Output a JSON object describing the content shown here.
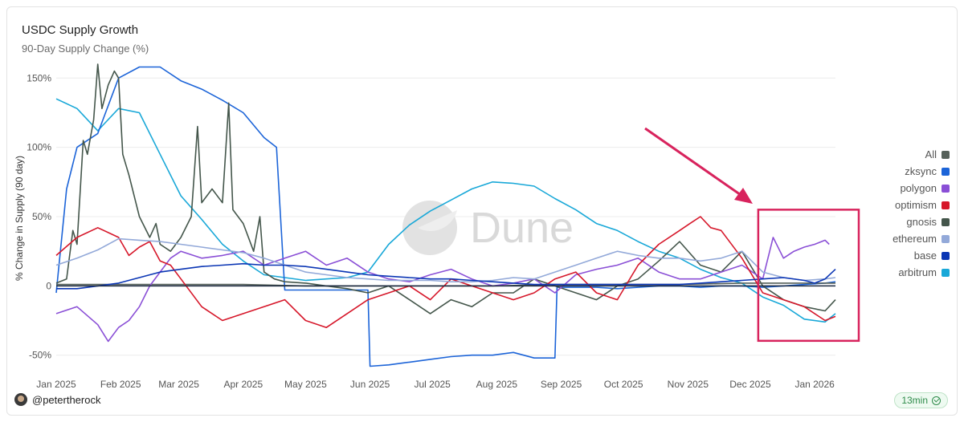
{
  "header": {
    "title": "USDC Supply Growth",
    "subtitle": "90-Day Supply Change (%)"
  },
  "footer": {
    "author": "@petertherock",
    "refresh": "13min"
  },
  "watermark": "Dune",
  "colors": {
    "All": "#56615a",
    "zksync": "#1c64d8",
    "polygon": "#8a4fd6",
    "optimism": "#d6172a",
    "gnosis": "#44564b",
    "ethereum": "#93a9d9",
    "base": "#0a35b4",
    "arbitrum": "#19a8d8",
    "highlight": "#d8235d",
    "axis": "#1c2a40"
  },
  "chart_data": {
    "type": "line",
    "title": "USDC Supply Growth",
    "subtitle": "90-Day Supply Change (%)",
    "xlabel": "",
    "ylabel": "% Change in Supply (90 day)",
    "ylim": [
      -60,
      160
    ],
    "yticks": [
      150,
      100,
      50,
      0,
      -50
    ],
    "ytick_labels": [
      "150%",
      "100%",
      "50%",
      "0",
      "-50%"
    ],
    "xlim": [
      0,
      375
    ],
    "xticks": [
      0,
      31,
      59,
      90,
      120,
      151,
      181,
      212,
      243,
      273,
      304,
      334,
      365
    ],
    "xtick_labels": [
      "Jan 2025",
      "Feb 2025",
      "Mar 2025",
      "Apr 2025",
      "May 2025",
      "Jun 2025",
      "Jul 2025",
      "Aug 2025",
      "Sep 2025",
      "Oct 2025",
      "Nov 2025",
      "Dec 2025",
      "Jan 2026"
    ],
    "x_unit": "days since 2025-01-01",
    "legend": {
      "position": "right",
      "entries": [
        "All",
        "zksync",
        "polygon",
        "optimism",
        "gnosis",
        "ethereum",
        "base",
        "arbitrum"
      ]
    },
    "annotation": {
      "type": "highlight-box",
      "x_range": [
        339,
        375
      ],
      "y_range": [
        -35,
        55
      ],
      "arrow": true
    },
    "series": [
      {
        "name": "arbitrum",
        "x": [
          0,
          10,
          20,
          30,
          40,
          50,
          60,
          70,
          80,
          90,
          100,
          110,
          120,
          130,
          140,
          150,
          160,
          170,
          180,
          190,
          200,
          210,
          220,
          230,
          240,
          250,
          260,
          270,
          280,
          290,
          300,
          310,
          320,
          330,
          340,
          350,
          360,
          370,
          375
        ],
        "values": [
          135,
          128,
          112,
          128,
          125,
          95,
          65,
          48,
          30,
          18,
          8,
          6,
          4,
          5,
          6,
          10,
          30,
          44,
          54,
          62,
          70,
          75,
          74,
          72,
          63,
          55,
          45,
          40,
          32,
          25,
          20,
          12,
          6,
          2,
          -8,
          -14,
          -24,
          -26,
          -20
        ]
      },
      {
        "name": "zksync",
        "x": [
          0,
          5,
          10,
          20,
          30,
          40,
          50,
          60,
          70,
          80,
          90,
          100,
          106,
          110,
          120,
          130,
          140,
          150,
          151,
          160,
          170,
          180,
          190,
          200,
          210,
          220,
          230,
          240,
          241,
          250,
          260,
          270,
          280,
          290,
          300,
          310,
          320,
          330,
          340,
          350,
          360,
          370,
          375
        ],
        "values": [
          -5,
          70,
          100,
          110,
          150,
          158,
          158,
          148,
          142,
          134,
          125,
          107,
          100,
          -3,
          -3,
          -3,
          -3,
          -3,
          -58,
          -57,
          -55,
          -53,
          -51,
          -50,
          -50,
          -48,
          -52,
          -52,
          -1,
          -1,
          -1,
          -2,
          -1,
          0,
          0,
          -1,
          0,
          0,
          -1,
          0,
          1,
          2,
          3
        ]
      },
      {
        "name": "gnosis",
        "x": [
          0,
          5,
          8,
          10,
          13,
          15,
          18,
          20,
          22,
          25,
          28,
          30,
          32,
          35,
          40,
          45,
          48,
          50,
          55,
          60,
          65,
          68,
          70,
          75,
          80,
          83,
          85,
          90,
          95,
          98,
          100,
          105,
          110,
          120,
          130,
          140,
          150,
          160,
          170,
          180,
          190,
          200,
          210,
          220,
          230,
          240,
          250,
          260,
          270,
          280,
          290,
          300,
          310,
          320,
          330,
          340,
          350,
          360,
          370,
          375
        ],
        "values": [
          2,
          5,
          40,
          30,
          105,
          95,
          120,
          160,
          128,
          145,
          155,
          150,
          95,
          80,
          50,
          35,
          45,
          30,
          25,
          35,
          50,
          115,
          60,
          70,
          60,
          132,
          55,
          45,
          25,
          50,
          10,
          5,
          3,
          2,
          0,
          -2,
          -5,
          0,
          -10,
          -20,
          -10,
          -15,
          -5,
          -5,
          5,
          0,
          -5,
          -10,
          0,
          5,
          18,
          32,
          15,
          10,
          25,
          0,
          -10,
          -15,
          -18,
          -10
        ]
      },
      {
        "name": "All",
        "x": [
          0,
          30,
          60,
          90,
          120,
          150,
          180,
          210,
          240,
          270,
          300,
          330,
          360,
          375
        ],
        "values": [
          1,
          1,
          1,
          1,
          0,
          0,
          0,
          0,
          1,
          1,
          1,
          2,
          2,
          2
        ]
      },
      {
        "name": "polygon",
        "x": [
          0,
          10,
          20,
          25,
          30,
          35,
          40,
          45,
          50,
          55,
          60,
          70,
          80,
          90,
          100,
          110,
          120,
          130,
          140,
          150,
          160,
          170,
          180,
          190,
          200,
          210,
          220,
          230,
          240,
          250,
          260,
          270,
          280,
          290,
          300,
          310,
          320,
          330,
          335,
          340,
          345,
          350,
          355,
          360,
          365,
          370,
          372
        ],
        "values": [
          -20,
          -15,
          -28,
          -40,
          -30,
          -25,
          -15,
          0,
          10,
          20,
          25,
          20,
          22,
          25,
          15,
          20,
          25,
          15,
          20,
          10,
          5,
          3,
          8,
          12,
          5,
          0,
          2,
          5,
          -5,
          8,
          12,
          15,
          20,
          10,
          5,
          5,
          10,
          15,
          10,
          5,
          35,
          20,
          25,
          28,
          30,
          33,
          30
        ]
      },
      {
        "name": "optimism",
        "x": [
          0,
          10,
          20,
          30,
          35,
          40,
          45,
          50,
          55,
          60,
          70,
          80,
          90,
          100,
          110,
          120,
          130,
          140,
          150,
          160,
          170,
          180,
          190,
          200,
          210,
          220,
          230,
          240,
          250,
          260,
          270,
          280,
          290,
          300,
          305,
          310,
          315,
          320,
          330,
          340,
          350,
          360,
          365,
          370,
          375
        ],
        "values": [
          22,
          35,
          42,
          35,
          22,
          28,
          32,
          18,
          15,
          5,
          -15,
          -25,
          -20,
          -15,
          -10,
          -25,
          -30,
          -20,
          -10,
          -5,
          0,
          -10,
          5,
          0,
          -5,
          -10,
          -5,
          5,
          10,
          -5,
          -10,
          15,
          30,
          40,
          45,
          50,
          42,
          40,
          20,
          -5,
          -10,
          -15,
          -20,
          -25,
          -22
        ]
      },
      {
        "name": "ethereum",
        "x": [
          0,
          10,
          20,
          30,
          40,
          50,
          60,
          70,
          80,
          90,
          100,
          110,
          120,
          130,
          140,
          150,
          160,
          170,
          180,
          190,
          200,
          210,
          220,
          230,
          240,
          250,
          260,
          270,
          280,
          290,
          300,
          310,
          320,
          330,
          340,
          350,
          360,
          370,
          375
        ],
        "values": [
          15,
          20,
          26,
          34,
          33,
          32,
          30,
          28,
          26,
          24,
          20,
          15,
          10,
          8,
          6,
          5,
          4,
          4,
          4,
          3,
          3,
          4,
          6,
          5,
          10,
          15,
          20,
          25,
          22,
          20,
          20,
          18,
          20,
          25,
          10,
          6,
          4,
          5,
          6
        ]
      },
      {
        "name": "base",
        "x": [
          0,
          10,
          20,
          30,
          40,
          50,
          60,
          70,
          80,
          90,
          100,
          110,
          120,
          130,
          140,
          150,
          160,
          170,
          180,
          190,
          200,
          210,
          220,
          230,
          240,
          250,
          260,
          270,
          280,
          290,
          300,
          310,
          320,
          330,
          340,
          350,
          360,
          365,
          370,
          375
        ],
        "values": [
          -2,
          -2,
          0,
          2,
          6,
          10,
          12,
          14,
          15,
          16,
          15,
          15,
          14,
          12,
          10,
          8,
          7,
          6,
          5,
          5,
          4,
          3,
          2,
          1,
          1,
          1,
          1,
          1,
          1,
          1,
          1,
          2,
          3,
          4,
          5,
          6,
          4,
          2,
          5,
          12
        ]
      }
    ]
  }
}
